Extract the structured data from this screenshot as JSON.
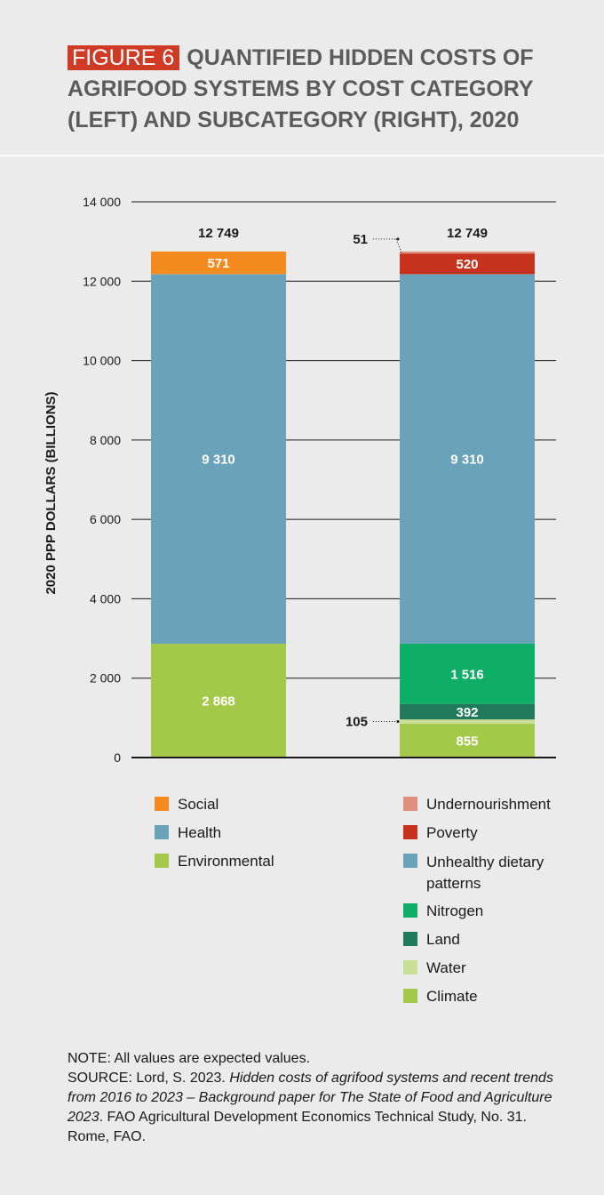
{
  "figure_tag": "FIGURE 6",
  "title": "QUANTIFIED HIDDEN COSTS OF AGRIFOOD SYSTEMS BY COST CATEGORY (LEFT) AND SUBCATEGORY (RIGHT), 2020",
  "chart_data": {
    "type": "bar",
    "stacked": true,
    "ylabel": "2020 PPP DOLLARS (BILLIONS)",
    "ylim": [
      0,
      14000
    ],
    "yticks": [
      0,
      2000,
      4000,
      6000,
      8000,
      10000,
      12000,
      14000
    ],
    "ytick_labels": [
      "0",
      "2 000",
      "4 000",
      "6 000",
      "8 000",
      "10 000",
      "12 000",
      "14 000"
    ],
    "grid": true,
    "bars": [
      {
        "total": 12749,
        "total_label": "12 749",
        "segments": [
          {
            "name": "Environmental",
            "value": 2868,
            "label": "2 868",
            "color": "#a4c94a"
          },
          {
            "name": "Health",
            "value": 9310,
            "label": "9 310",
            "color": "#6aa3b9"
          },
          {
            "name": "Social",
            "value": 571,
            "label": "571",
            "color": "#f58a1f"
          }
        ]
      },
      {
        "total": 12749,
        "total_label": "12 749",
        "segments": [
          {
            "name": "Climate",
            "value": 855,
            "label": "855",
            "color": "#a4c94a"
          },
          {
            "name": "Water",
            "value": 105,
            "label": "105",
            "color": "#c9df95",
            "callout": true
          },
          {
            "name": "Land",
            "value": 392,
            "label": "392",
            "color": "#217a5c"
          },
          {
            "name": "Nitrogen",
            "value": 1516,
            "label": "1 516",
            "color": "#0fae68"
          },
          {
            "name": "Unhealthy dietary patterns",
            "value": 9310,
            "label": "9 310",
            "color": "#6aa3b9"
          },
          {
            "name": "Poverty",
            "value": 520,
            "label": "520",
            "color": "#c7321f"
          },
          {
            "name": "Undernourishment",
            "value": 51,
            "label": "51",
            "color": "#e0907a",
            "callout": true
          }
        ]
      }
    ]
  },
  "legend_left": [
    {
      "label": "Social",
      "color": "#f58a1f"
    },
    {
      "label": "Health",
      "color": "#6aa3b9"
    },
    {
      "label": "Environmental",
      "color": "#a4c94a"
    }
  ],
  "legend_right": [
    {
      "label": "Undernourishment",
      "color": "#e0907a"
    },
    {
      "label": "Poverty",
      "color": "#c7321f"
    },
    {
      "label": "Unhealthy dietary patterns",
      "color": "#6aa3b9"
    },
    {
      "label": "Nitrogen",
      "color": "#0fae68"
    },
    {
      "label": "Land",
      "color": "#217a5c"
    },
    {
      "label": "Water",
      "color": "#c9df95"
    },
    {
      "label": "Climate",
      "color": "#a4c94a"
    }
  ],
  "note": {
    "line1": "NOTE: All values are expected values.",
    "source_prefix": "SOURCE: Lord, S. 2023. ",
    "source_title": "Hidden costs of agrifood systems and recent trends from 2016 to 2023 – Background paper for The State of Food and Agriculture 2023",
    "source_suffix": ". FAO Agricultural Development Economics Technical Study, No. 31. Rome, FAO."
  }
}
